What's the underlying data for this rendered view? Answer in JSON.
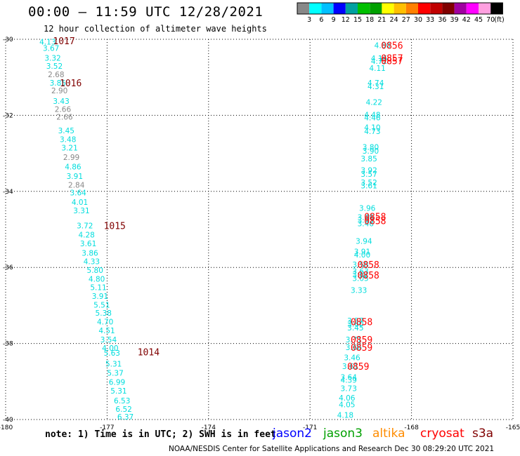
{
  "header": {
    "title": "00:00 — 11:59 UTC 12/28/2021",
    "subtitle": "12 hour collection of altimeter wave heights"
  },
  "colorbar": {
    "unit": "(ft)",
    "ticks": [
      "3",
      "6",
      "9",
      "12",
      "15",
      "18",
      "21",
      "24",
      "27",
      "30",
      "33",
      "36",
      "39",
      "42",
      "45",
      "70"
    ],
    "colors": [
      "#888888",
      "#00ffff",
      "#00c0ff",
      "#0000ff",
      "#00a0a0",
      "#00c000",
      "#00a000",
      "#ffff00",
      "#ffc000",
      "#ff8000",
      "#ff0000",
      "#c00000",
      "#800000",
      "#a000a0",
      "#ff00ff",
      "#ffa0e0",
      "#000000"
    ]
  },
  "footer": {
    "note": "note:  1) Time is in UTC;  2) SWH is in feet",
    "legend": [
      {
        "label": "jason2",
        "color": "#0000ff"
      },
      {
        "label": "jason3",
        "color": "#00a000"
      },
      {
        "label": "altika",
        "color": "#ff8c00"
      },
      {
        "label": "cryosat",
        "color": "#ff0000"
      },
      {
        "label": "s3a",
        "color": "#800000"
      }
    ],
    "credit": "NOAA/NESDIS Center for Satellite Applications and Research   Dec 30 08:29:20 UTC 2021"
  },
  "chart_data": {
    "type": "scatter",
    "title": "00:00 — 11:59 UTC 12/28/2021",
    "subtitle": "12 hour collection of altimeter wave heights",
    "xlim": [
      -180,
      -165
    ],
    "ylim": [
      -40,
      -30
    ],
    "x_ticks": [
      "-180",
      "-177",
      "-174",
      "-171",
      "-168",
      "-165"
    ],
    "x_tick_values": [
      -180,
      -177,
      -174,
      -171,
      -168,
      -165
    ],
    "y_ticks": [
      "-30",
      "-32",
      "-34",
      "-36",
      "-38",
      "-40"
    ],
    "y_tick_values": [
      -30,
      -32,
      -34,
      -36,
      -38,
      -40
    ],
    "grid": true,
    "series": [
      {
        "name": "s3a",
        "color": "#800000",
        "time_labels": [
          {
            "text": "1017",
            "lon": -178.6,
            "lat": -30.04
          },
          {
            "text": "1016",
            "lon": -178.4,
            "lat": -31.14
          },
          {
            "text": "1015",
            "lon": -177.1,
            "lat": -34.9
          },
          {
            "text": "1014",
            "lon": -176.1,
            "lat": -38.22
          }
        ],
        "points": [
          {
            "v": "4.13",
            "lat": -30.06,
            "lon": -179.0,
            "c": "#00dddd"
          },
          {
            "v": "3.67",
            "lat": -30.23,
            "lon": -178.9,
            "c": "#00dddd"
          },
          {
            "v": "3.32",
            "lat": -30.49,
            "lon": -178.85,
            "c": "#00dddd"
          },
          {
            "v": "3.52",
            "lat": -30.7,
            "lon": -178.8,
            "c": "#00dddd"
          },
          {
            "v": "2.68",
            "lat": -30.92,
            "lon": -178.75,
            "c": "#888888"
          },
          {
            "v": "3.85",
            "lat": -31.14,
            "lon": -178.7,
            "c": "#00dddd"
          },
          {
            "v": "2.90",
            "lat": -31.35,
            "lon": -178.65,
            "c": "#888888"
          },
          {
            "v": "3.43",
            "lat": -31.62,
            "lon": -178.6,
            "c": "#00dddd"
          },
          {
            "v": "2.66",
            "lat": -31.84,
            "lon": -178.55,
            "c": "#888888"
          },
          {
            "v": "2.66",
            "lat": -32.04,
            "lon": -178.5,
            "c": "#888888"
          },
          {
            "v": "3.45",
            "lat": -32.4,
            "lon": -178.45,
            "c": "#00dddd"
          },
          {
            "v": "3.48",
            "lat": -32.63,
            "lon": -178.4,
            "c": "#00dddd"
          },
          {
            "v": "3.21",
            "lat": -32.85,
            "lon": -178.35,
            "c": "#00dddd"
          },
          {
            "v": "2.99",
            "lat": -33.1,
            "lon": -178.3,
            "c": "#888888"
          },
          {
            "v": "4.86",
            "lat": -33.35,
            "lon": -178.25,
            "c": "#00dddd"
          },
          {
            "v": "3.91",
            "lat": -33.6,
            "lon": -178.2,
            "c": "#00dddd"
          },
          {
            "v": "2.84",
            "lat": -33.83,
            "lon": -178.15,
            "c": "#888888"
          },
          {
            "v": "3.64",
            "lat": -34.03,
            "lon": -178.1,
            "c": "#00dddd"
          },
          {
            "v": "4.01",
            "lat": -34.28,
            "lon": -178.05,
            "c": "#00dddd"
          },
          {
            "v": "3.31",
            "lat": -34.5,
            "lon": -178.0,
            "c": "#00dddd"
          },
          {
            "v": "3.72",
            "lat": -34.9,
            "lon": -177.9,
            "c": "#00dddd"
          },
          {
            "v": "4.28",
            "lat": -35.14,
            "lon": -177.85,
            "c": "#00dddd"
          },
          {
            "v": "3.61",
            "lat": -35.37,
            "lon": -177.8,
            "c": "#00dddd"
          },
          {
            "v": "3.86",
            "lat": -35.62,
            "lon": -177.75,
            "c": "#00dddd"
          },
          {
            "v": "4.33",
            "lat": -35.84,
            "lon": -177.7,
            "c": "#00dddd"
          },
          {
            "v": "5.80",
            "lat": -36.07,
            "lon": -177.6,
            "c": "#00dddd"
          },
          {
            "v": "4.80",
            "lat": -36.3,
            "lon": -177.55,
            "c": "#00dddd"
          },
          {
            "v": "5.11",
            "lat": -36.52,
            "lon": -177.5,
            "c": "#00dddd"
          },
          {
            "v": "3.91",
            "lat": -36.75,
            "lon": -177.45,
            "c": "#00dddd"
          },
          {
            "v": "5.51",
            "lat": -36.98,
            "lon": -177.4,
            "c": "#00dddd"
          },
          {
            "v": "5.38",
            "lat": -37.2,
            "lon": -177.35,
            "c": "#00dddd"
          },
          {
            "v": "4.70",
            "lat": -37.43,
            "lon": -177.3,
            "c": "#00dddd"
          },
          {
            "v": "4.51",
            "lat": -37.66,
            "lon": -177.25,
            "c": "#00dddd"
          },
          {
            "v": "3.54",
            "lat": -37.9,
            "lon": -177.2,
            "c": "#00dddd"
          },
          {
            "v": "4.00",
            "lat": -38.12,
            "lon": -177.15,
            "c": "#00dddd"
          },
          {
            "v": "5.63",
            "lat": -38.25,
            "lon": -177.1,
            "c": "#00dddd"
          },
          {
            "v": "5.31",
            "lat": -38.53,
            "lon": -177.05,
            "c": "#00dddd"
          },
          {
            "v": "5.37",
            "lat": -38.77,
            "lon": -177.0,
            "c": "#00dddd"
          },
          {
            "v": "6.99",
            "lat": -39.01,
            "lon": -176.95,
            "c": "#00dddd"
          },
          {
            "v": "5.31",
            "lat": -39.24,
            "lon": -176.9,
            "c": "#00dddd"
          },
          {
            "v": "6.53",
            "lat": -39.5,
            "lon": -176.8,
            "c": "#00dddd"
          },
          {
            "v": "6.52",
            "lat": -39.72,
            "lon": -176.75,
            "c": "#00dddd"
          },
          {
            "v": "6.37",
            "lat": -39.93,
            "lon": -176.7,
            "c": "#00dddd"
          }
        ]
      },
      {
        "name": "cryosat",
        "color": "#ff0000",
        "time_labels": [
          {
            "text": "0856",
            "lon": -168.9,
            "lat": -30.16
          },
          {
            "text": "0857",
            "lon": -168.9,
            "lat": -30.49
          },
          {
            "text": "0857",
            "lon": -168.9,
            "lat": -30.56
          },
          {
            "text": "0858",
            "lon": -169.4,
            "lat": -34.66
          },
          {
            "text": "0858",
            "lon": -169.4,
            "lat": -34.77
          },
          {
            "text": "0858",
            "lon": -169.6,
            "lat": -35.92
          },
          {
            "text": "0858",
            "lon": -169.6,
            "lat": -36.2
          },
          {
            "text": "0858",
            "lon": -169.8,
            "lat": -37.43
          },
          {
            "text": "0859",
            "lon": -169.8,
            "lat": -37.9
          },
          {
            "text": "0859",
            "lon": -169.8,
            "lat": -38.1
          },
          {
            "text": "0859",
            "lon": -169.9,
            "lat": -38.6
          }
        ],
        "points": [
          {
            "v": "4.60",
            "lat": -30.16,
            "lon": -169.1,
            "c": "#00dddd"
          },
          {
            "v": "4.16",
            "lat": -30.5,
            "lon": -169.2,
            "c": "#00dddd"
          },
          {
            "v": "4.72",
            "lat": -30.57,
            "lon": -169.2,
            "c": "#00dddd"
          },
          {
            "v": "4.11",
            "lat": -30.76,
            "lon": -169.25,
            "c": "#00dddd"
          },
          {
            "v": "4.74",
            "lat": -31.14,
            "lon": -169.3,
            "c": "#00dddd"
          },
          {
            "v": "4.31",
            "lat": -31.24,
            "lon": -169.3,
            "c": "#00dddd"
          },
          {
            "v": "4.22",
            "lat": -31.65,
            "lon": -169.35,
            "c": "#00dddd"
          },
          {
            "v": "4.48",
            "lat": -31.98,
            "lon": -169.4,
            "c": "#00dddd"
          },
          {
            "v": "4.46",
            "lat": -32.06,
            "lon": -169.4,
            "c": "#00dddd"
          },
          {
            "v": "4.10",
            "lat": -32.32,
            "lon": -169.4,
            "c": "#00dddd"
          },
          {
            "v": "4.73",
            "lat": -32.42,
            "lon": -169.4,
            "c": "#00dddd"
          },
          {
            "v": "3.80",
            "lat": -32.83,
            "lon": -169.45,
            "c": "#00dddd"
          },
          {
            "v": "3.90",
            "lat": -32.93,
            "lon": -169.45,
            "c": "#00dddd"
          },
          {
            "v": "3.85",
            "lat": -33.14,
            "lon": -169.5,
            "c": "#00dddd"
          },
          {
            "v": "3.92",
            "lat": -33.44,
            "lon": -169.5,
            "c": "#00dddd"
          },
          {
            "v": "3.57",
            "lat": -33.54,
            "lon": -169.5,
            "c": "#00dddd"
          },
          {
            "v": "3.52",
            "lat": -33.76,
            "lon": -169.5,
            "c": "#00dddd"
          },
          {
            "v": "3.61",
            "lat": -33.85,
            "lon": -169.5,
            "c": "#00dddd"
          },
          {
            "v": "3.96",
            "lat": -34.44,
            "lon": -169.55,
            "c": "#00dddd"
          },
          {
            "v": "3.48",
            "lat": -34.68,
            "lon": -169.6,
            "c": "#00dddd"
          },
          {
            "v": "3.43",
            "lat": -34.75,
            "lon": -169.6,
            "c": "#00dddd"
          },
          {
            "v": "3.46",
            "lat": -34.84,
            "lon": -169.6,
            "c": "#00dddd"
          },
          {
            "v": "3.94",
            "lat": -35.3,
            "lon": -169.65,
            "c": "#00dddd"
          },
          {
            "v": "3.91",
            "lat": -35.58,
            "lon": -169.7,
            "c": "#00dddd"
          },
          {
            "v": "4.00",
            "lat": -35.66,
            "lon": -169.7,
            "c": "#00dddd"
          },
          {
            "v": "3.58",
            "lat": -35.92,
            "lon": -169.75,
            "c": "#00dddd"
          },
          {
            "v": "3.63",
            "lat": -36.1,
            "lon": -169.75,
            "c": "#00dddd"
          },
          {
            "v": "3.62",
            "lat": -36.18,
            "lon": -169.75,
            "c": "#00dddd"
          },
          {
            "v": "3.05",
            "lat": -36.28,
            "lon": -169.75,
            "c": "#00dddd"
          },
          {
            "v": "3.33",
            "lat": -36.6,
            "lon": -169.8,
            "c": "#00dddd"
          },
          {
            "v": "3.57",
            "lat": -37.4,
            "lon": -169.9,
            "c": "#00dddd"
          },
          {
            "v": "3.60",
            "lat": -37.48,
            "lon": -169.9,
            "c": "#00dddd"
          },
          {
            "v": "3.45",
            "lat": -37.58,
            "lon": -169.9,
            "c": "#00dddd"
          },
          {
            "v": "3.71",
            "lat": -37.9,
            "lon": -169.95,
            "c": "#00dddd"
          },
          {
            "v": "3.66",
            "lat": -38.1,
            "lon": -169.95,
            "c": "#00dddd"
          },
          {
            "v": "3.46",
            "lat": -38.37,
            "lon": -170.0,
            "c": "#00dddd"
          },
          {
            "v": "3.61",
            "lat": -38.6,
            "lon": -170.05,
            "c": "#00dddd"
          },
          {
            "v": "3.64",
            "lat": -38.88,
            "lon": -170.1,
            "c": "#00dddd"
          },
          {
            "v": "4.39",
            "lat": -38.96,
            "lon": -170.1,
            "c": "#00dddd"
          },
          {
            "v": "3.73",
            "lat": -39.18,
            "lon": -170.1,
            "c": "#00dddd"
          },
          {
            "v": "4.06",
            "lat": -39.43,
            "lon": -170.15,
            "c": "#00dddd"
          },
          {
            "v": "4.05",
            "lat": -39.6,
            "lon": -170.15,
            "c": "#00dddd"
          },
          {
            "v": "4.18",
            "lat": -39.88,
            "lon": -170.2,
            "c": "#00dddd"
          }
        ]
      }
    ]
  }
}
